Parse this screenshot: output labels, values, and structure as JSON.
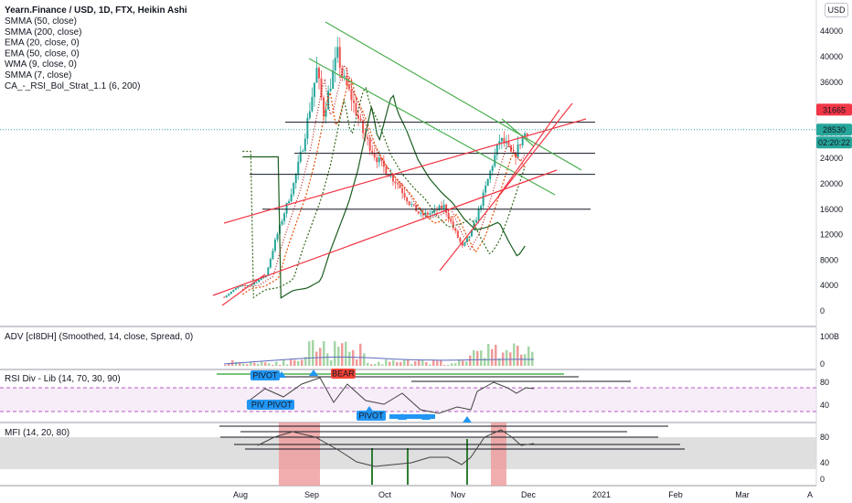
{
  "header": {
    "title": "Yearn.Finance / USD, 1D, FTX, Heikin Ashi",
    "currency_button": "USD"
  },
  "indicators": [
    "SMMA (50, close)",
    "SMMA (200, close)",
    "EMA (20, close, 0)",
    "EMA (50, close, 0)",
    "WMA (9, close, 0)",
    "SMMA (7, close)",
    "CA_-_RSI_Bol_Strat_1.1 (6, 200)"
  ],
  "colors": {
    "up": "#26a69a",
    "down": "#ef5350",
    "trend_green": "#4caf50",
    "trend_red": "#f23645",
    "hline": "#131722",
    "price_tag_red": "#f23645",
    "price_tag_teal": "#26a69a",
    "pivot_blue": "#2196f3",
    "bear_red": "#f44336"
  },
  "price_axis": {
    "ticks": [
      "44000",
      "40000",
      "36000",
      "32000",
      "28000",
      "24000",
      "20000",
      "16000",
      "12000",
      "8000",
      "4000",
      "0"
    ],
    "top_partial": "4",
    "tags": {
      "upper": "31665",
      "current": "28530",
      "countdown": "02:20:22"
    }
  },
  "time_axis": {
    "ticks": [
      "Aug",
      "Sep",
      "Oct",
      "Nov",
      "Dec",
      "2021",
      "Feb",
      "Mar",
      "A"
    ]
  },
  "panes": {
    "adv": {
      "title": "ADV [cI8DH] (Smoothed, 14, close, Spread, 0)",
      "ticks": [
        "100B",
        "0"
      ]
    },
    "rsi": {
      "title": "RSI Div - Lib (14, 70, 30, 90)",
      "ticks": [
        "80",
        "40"
      ],
      "labels": [
        "PIVOT",
        "BEAR",
        "PIVI",
        "PIVOT",
        "PIVOT"
      ]
    },
    "mfi": {
      "title": "MFI (14, 20, 80)",
      "ticks": [
        "80",
        "40",
        "0"
      ]
    }
  },
  "chart_data": {
    "type": "candlestick",
    "title": "Yearn.Finance / USD, 1D, FTX, Heikin Ashi",
    "x_start": "2020-07-25",
    "x_end": "2020-12-06",
    "ylim": [
      0,
      46000
    ],
    "close_path": [
      [
        "2020-07-25",
        2200
      ],
      [
        "2020-07-31",
        3800
      ],
      [
        "2020-08-06",
        4200
      ],
      [
        "2020-08-12",
        5600
      ],
      [
        "2020-08-16",
        11000
      ],
      [
        "2020-08-20",
        15500
      ],
      [
        "2020-08-24",
        20000
      ],
      [
        "2020-08-28",
        26000
      ],
      [
        "2020-08-31",
        32000
      ],
      [
        "2020-09-03",
        38000
      ],
      [
        "2020-09-06",
        31000
      ],
      [
        "2020-09-10",
        37500
      ],
      [
        "2020-09-12",
        40500
      ],
      [
        "2020-09-14",
        37000
      ],
      [
        "2020-09-18",
        33500
      ],
      [
        "2020-09-23",
        28000
      ],
      [
        "2020-09-28",
        24500
      ],
      [
        "2020-10-03",
        22000
      ],
      [
        "2020-10-08",
        20000
      ],
      [
        "2020-10-13",
        17000
      ],
      [
        "2020-10-18",
        15000
      ],
      [
        "2020-10-23",
        15500
      ],
      [
        "2020-10-28",
        16500
      ],
      [
        "2020-11-01",
        13000
      ],
      [
        "2020-11-05",
        10000
      ],
      [
        "2020-11-09",
        12500
      ],
      [
        "2020-11-13",
        17000
      ],
      [
        "2020-11-17",
        22000
      ],
      [
        "2020-11-21",
        27000
      ],
      [
        "2020-11-24",
        26000
      ],
      [
        "2020-11-27",
        24000
      ],
      [
        "2020-12-01",
        27500
      ],
      [
        "2020-12-03",
        28530
      ]
    ],
    "horizontal_levels": [
      29700,
      24800,
      21500,
      16000
    ],
    "last_price": 28530,
    "upper_tag": 31665
  }
}
